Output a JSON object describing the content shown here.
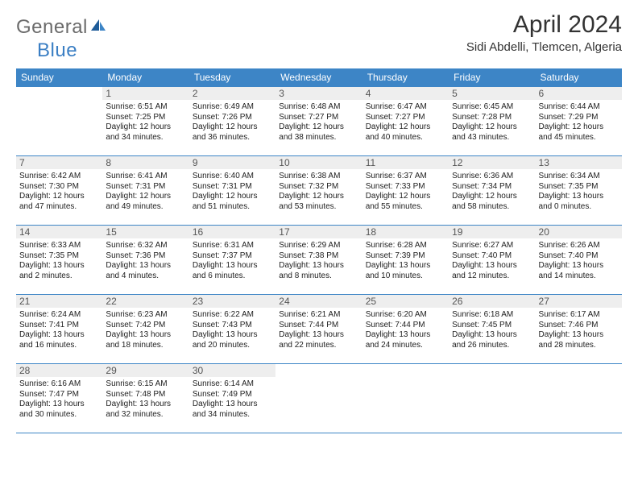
{
  "logo": {
    "text1": "General",
    "text2": "Blue"
  },
  "title": "April 2024",
  "subtitle": "Sidi Abdelli, Tlemcen, Algeria",
  "colors": {
    "header_bg": "#3d85c6",
    "header_text": "#ffffff",
    "daynum_bg": "#eeeeee",
    "border": "#3d85c6",
    "logo_gray": "#6b6b6b",
    "logo_blue": "#3b7fc4"
  },
  "weekdays": [
    "Sunday",
    "Monday",
    "Tuesday",
    "Wednesday",
    "Thursday",
    "Friday",
    "Saturday"
  ],
  "weeks": [
    [
      null,
      {
        "n": "1",
        "sr": "Sunrise: 6:51 AM",
        "ss": "Sunset: 7:25 PM",
        "d1": "Daylight: 12 hours",
        "d2": "and 34 minutes."
      },
      {
        "n": "2",
        "sr": "Sunrise: 6:49 AM",
        "ss": "Sunset: 7:26 PM",
        "d1": "Daylight: 12 hours",
        "d2": "and 36 minutes."
      },
      {
        "n": "3",
        "sr": "Sunrise: 6:48 AM",
        "ss": "Sunset: 7:27 PM",
        "d1": "Daylight: 12 hours",
        "d2": "and 38 minutes."
      },
      {
        "n": "4",
        "sr": "Sunrise: 6:47 AM",
        "ss": "Sunset: 7:27 PM",
        "d1": "Daylight: 12 hours",
        "d2": "and 40 minutes."
      },
      {
        "n": "5",
        "sr": "Sunrise: 6:45 AM",
        "ss": "Sunset: 7:28 PM",
        "d1": "Daylight: 12 hours",
        "d2": "and 43 minutes."
      },
      {
        "n": "6",
        "sr": "Sunrise: 6:44 AM",
        "ss": "Sunset: 7:29 PM",
        "d1": "Daylight: 12 hours",
        "d2": "and 45 minutes."
      }
    ],
    [
      {
        "n": "7",
        "sr": "Sunrise: 6:42 AM",
        "ss": "Sunset: 7:30 PM",
        "d1": "Daylight: 12 hours",
        "d2": "and 47 minutes."
      },
      {
        "n": "8",
        "sr": "Sunrise: 6:41 AM",
        "ss": "Sunset: 7:31 PM",
        "d1": "Daylight: 12 hours",
        "d2": "and 49 minutes."
      },
      {
        "n": "9",
        "sr": "Sunrise: 6:40 AM",
        "ss": "Sunset: 7:31 PM",
        "d1": "Daylight: 12 hours",
        "d2": "and 51 minutes."
      },
      {
        "n": "10",
        "sr": "Sunrise: 6:38 AM",
        "ss": "Sunset: 7:32 PM",
        "d1": "Daylight: 12 hours",
        "d2": "and 53 minutes."
      },
      {
        "n": "11",
        "sr": "Sunrise: 6:37 AM",
        "ss": "Sunset: 7:33 PM",
        "d1": "Daylight: 12 hours",
        "d2": "and 55 minutes."
      },
      {
        "n": "12",
        "sr": "Sunrise: 6:36 AM",
        "ss": "Sunset: 7:34 PM",
        "d1": "Daylight: 12 hours",
        "d2": "and 58 minutes."
      },
      {
        "n": "13",
        "sr": "Sunrise: 6:34 AM",
        "ss": "Sunset: 7:35 PM",
        "d1": "Daylight: 13 hours",
        "d2": "and 0 minutes."
      }
    ],
    [
      {
        "n": "14",
        "sr": "Sunrise: 6:33 AM",
        "ss": "Sunset: 7:35 PM",
        "d1": "Daylight: 13 hours",
        "d2": "and 2 minutes."
      },
      {
        "n": "15",
        "sr": "Sunrise: 6:32 AM",
        "ss": "Sunset: 7:36 PM",
        "d1": "Daylight: 13 hours",
        "d2": "and 4 minutes."
      },
      {
        "n": "16",
        "sr": "Sunrise: 6:31 AM",
        "ss": "Sunset: 7:37 PM",
        "d1": "Daylight: 13 hours",
        "d2": "and 6 minutes."
      },
      {
        "n": "17",
        "sr": "Sunrise: 6:29 AM",
        "ss": "Sunset: 7:38 PM",
        "d1": "Daylight: 13 hours",
        "d2": "and 8 minutes."
      },
      {
        "n": "18",
        "sr": "Sunrise: 6:28 AM",
        "ss": "Sunset: 7:39 PM",
        "d1": "Daylight: 13 hours",
        "d2": "and 10 minutes."
      },
      {
        "n": "19",
        "sr": "Sunrise: 6:27 AM",
        "ss": "Sunset: 7:40 PM",
        "d1": "Daylight: 13 hours",
        "d2": "and 12 minutes."
      },
      {
        "n": "20",
        "sr": "Sunrise: 6:26 AM",
        "ss": "Sunset: 7:40 PM",
        "d1": "Daylight: 13 hours",
        "d2": "and 14 minutes."
      }
    ],
    [
      {
        "n": "21",
        "sr": "Sunrise: 6:24 AM",
        "ss": "Sunset: 7:41 PM",
        "d1": "Daylight: 13 hours",
        "d2": "and 16 minutes."
      },
      {
        "n": "22",
        "sr": "Sunrise: 6:23 AM",
        "ss": "Sunset: 7:42 PM",
        "d1": "Daylight: 13 hours",
        "d2": "and 18 minutes."
      },
      {
        "n": "23",
        "sr": "Sunrise: 6:22 AM",
        "ss": "Sunset: 7:43 PM",
        "d1": "Daylight: 13 hours",
        "d2": "and 20 minutes."
      },
      {
        "n": "24",
        "sr": "Sunrise: 6:21 AM",
        "ss": "Sunset: 7:44 PM",
        "d1": "Daylight: 13 hours",
        "d2": "and 22 minutes."
      },
      {
        "n": "25",
        "sr": "Sunrise: 6:20 AM",
        "ss": "Sunset: 7:44 PM",
        "d1": "Daylight: 13 hours",
        "d2": "and 24 minutes."
      },
      {
        "n": "26",
        "sr": "Sunrise: 6:18 AM",
        "ss": "Sunset: 7:45 PM",
        "d1": "Daylight: 13 hours",
        "d2": "and 26 minutes."
      },
      {
        "n": "27",
        "sr": "Sunrise: 6:17 AM",
        "ss": "Sunset: 7:46 PM",
        "d1": "Daylight: 13 hours",
        "d2": "and 28 minutes."
      }
    ],
    [
      {
        "n": "28",
        "sr": "Sunrise: 6:16 AM",
        "ss": "Sunset: 7:47 PM",
        "d1": "Daylight: 13 hours",
        "d2": "and 30 minutes."
      },
      {
        "n": "29",
        "sr": "Sunrise: 6:15 AM",
        "ss": "Sunset: 7:48 PM",
        "d1": "Daylight: 13 hours",
        "d2": "and 32 minutes."
      },
      {
        "n": "30",
        "sr": "Sunrise: 6:14 AM",
        "ss": "Sunset: 7:49 PM",
        "d1": "Daylight: 13 hours",
        "d2": "and 34 minutes."
      },
      null,
      null,
      null,
      null
    ]
  ]
}
